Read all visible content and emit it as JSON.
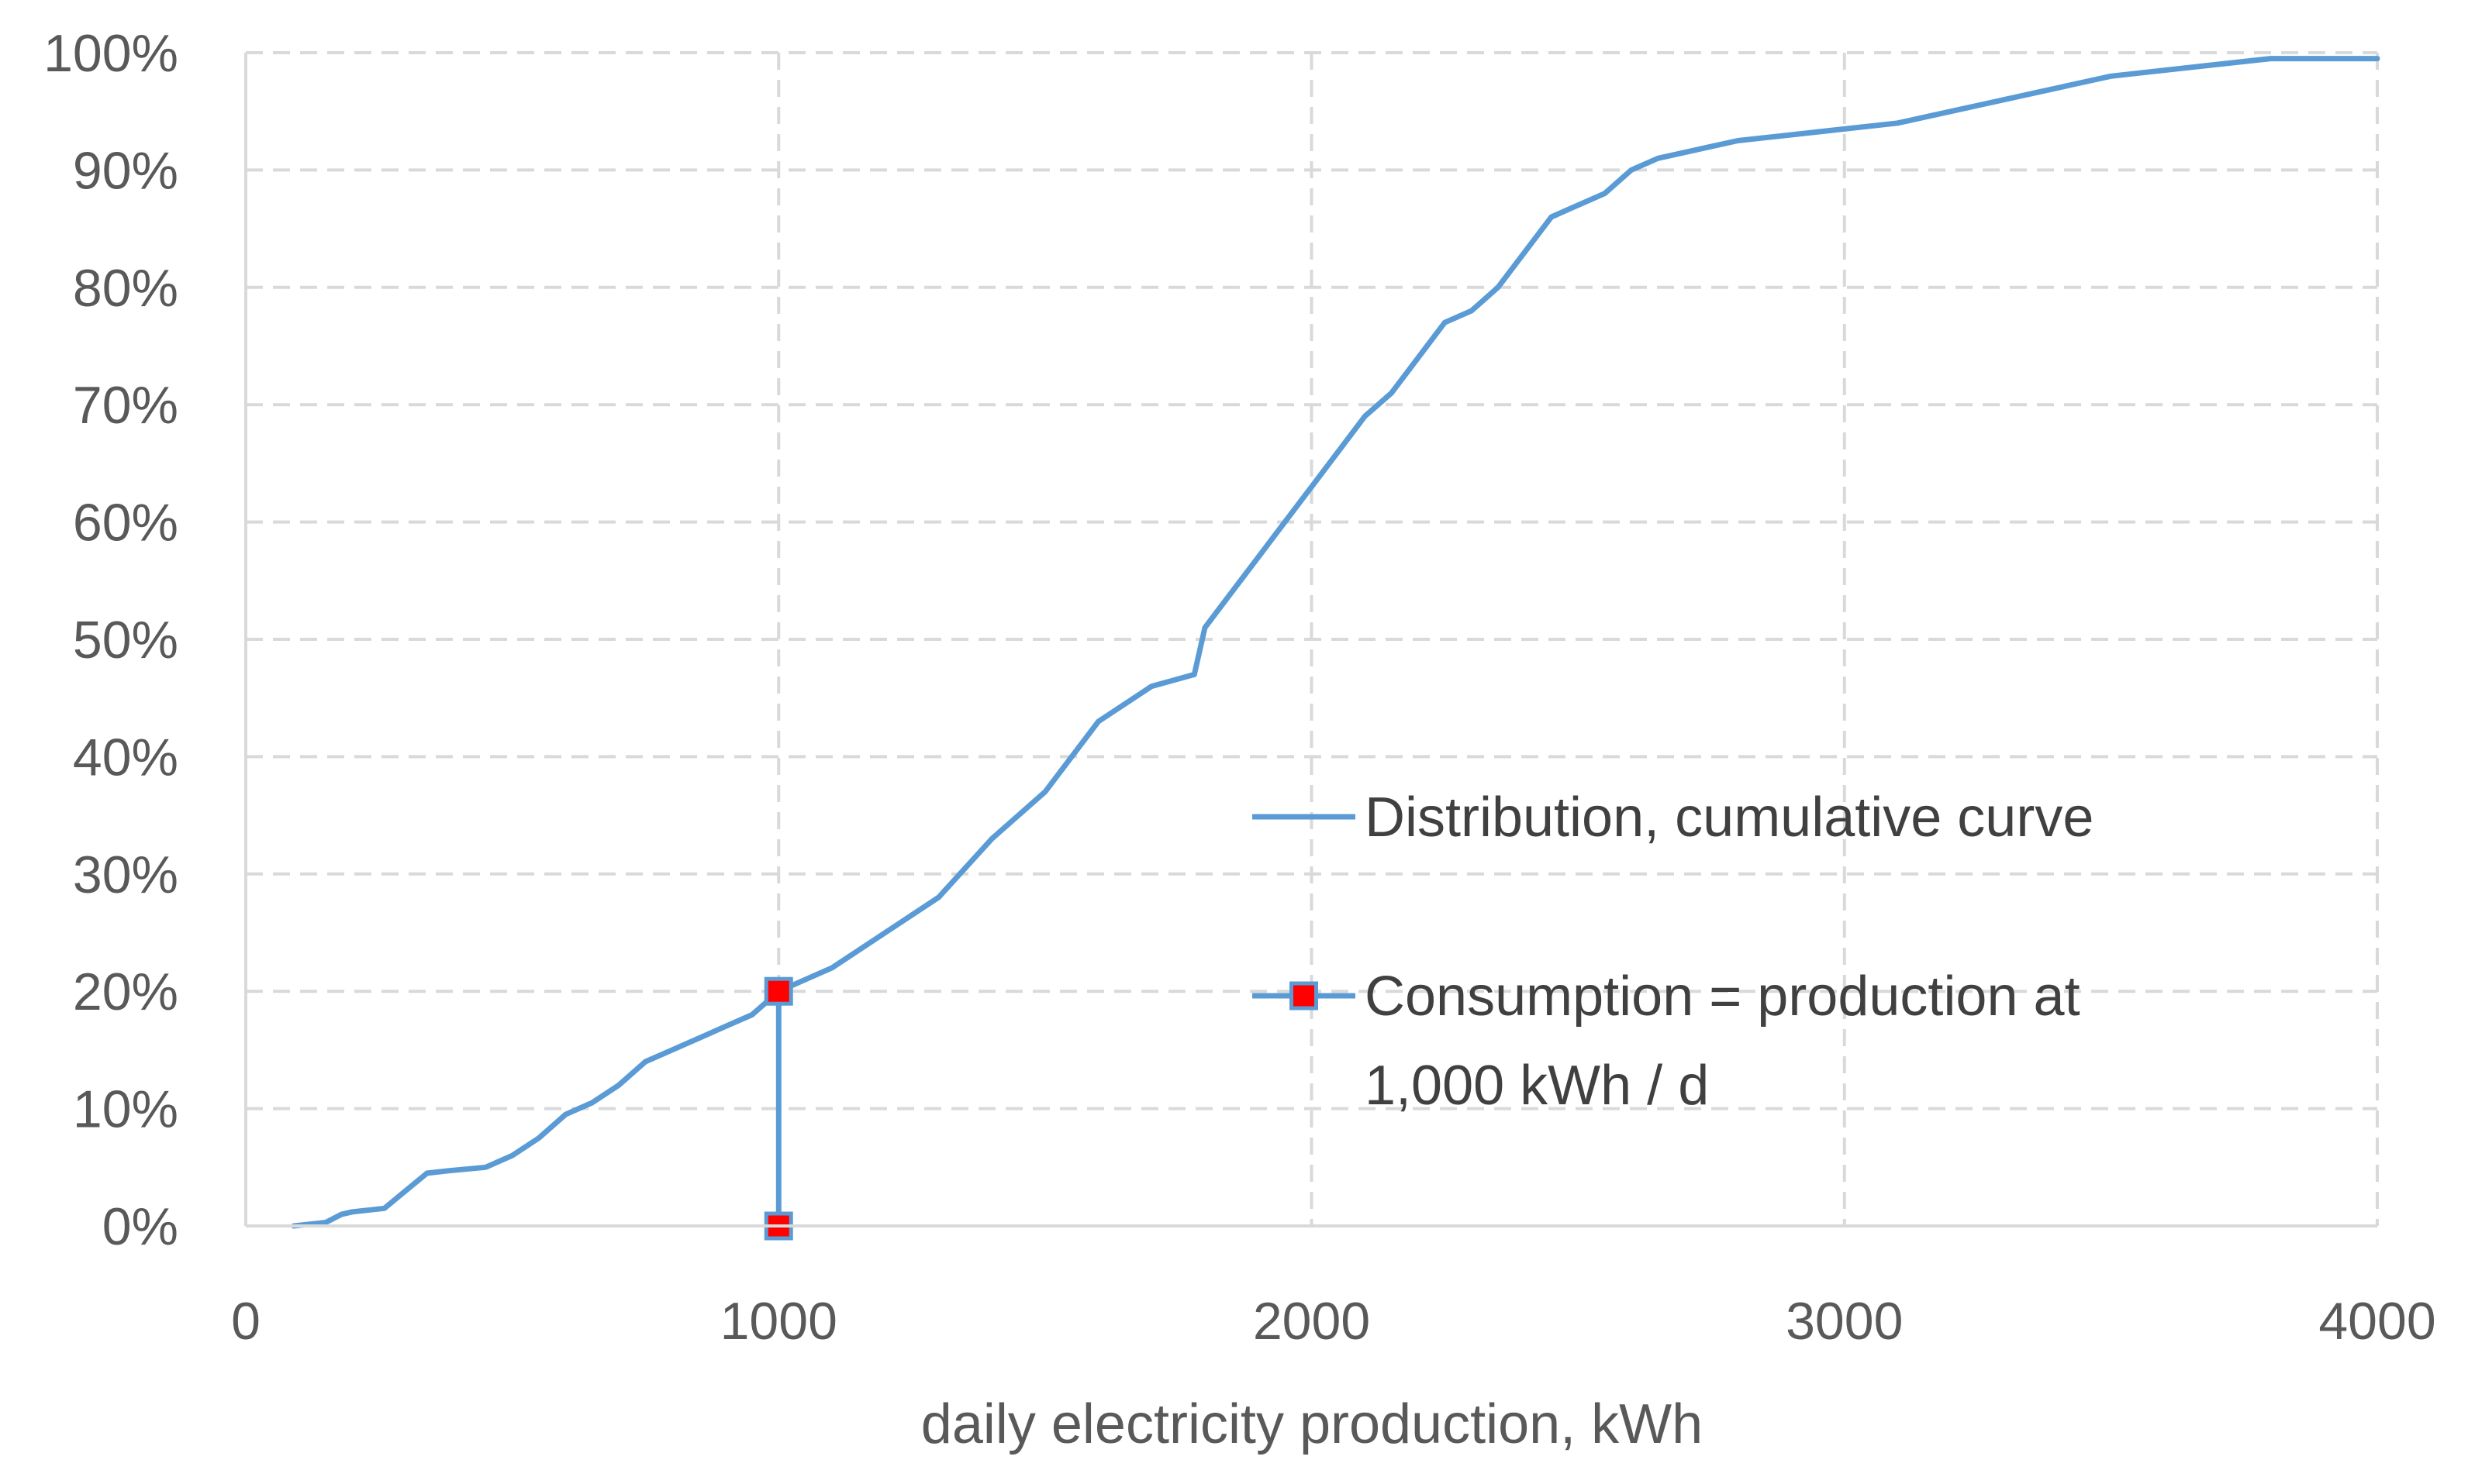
{
  "chart_data": {
    "type": "line",
    "title": "",
    "xlabel": "daily electricity production, kWh",
    "ylabel": "",
    "xlim": [
      0,
      4000
    ],
    "ylim": [
      0,
      1
    ],
    "x_ticks": [
      "0",
      "1000",
      "2000",
      "3000",
      "4000"
    ],
    "x_tick_values": [
      0,
      1000,
      2000,
      3000,
      4000
    ],
    "y_ticks": [
      "0%",
      "10%",
      "20%",
      "30%",
      "40%",
      "50%",
      "60%",
      "70%",
      "80%",
      "90%",
      "100%"
    ],
    "y_tick_values": [
      0,
      0.1,
      0.2,
      0.3,
      0.4,
      0.5,
      0.6,
      0.7,
      0.8,
      0.9,
      1.0
    ],
    "grid": "dashed",
    "legend_position": "center-right",
    "series": [
      {
        "name": "Distribution, cumulative curve",
        "color": "#5B9BD5",
        "marker": "none",
        "x": [
          90,
          150,
          180,
          200,
          260,
          300,
          340,
          380,
          450,
          500,
          550,
          600,
          650,
          700,
          750,
          800,
          850,
          900,
          950,
          1000,
          1100,
          1200,
          1300,
          1400,
          1500,
          1600,
          1700,
          1780,
          1800,
          1850,
          1900,
          1950,
          2000,
          2050,
          2100,
          2150,
          2200,
          2250,
          2300,
          2350,
          2400,
          2450,
          2500,
          2550,
          2600,
          2650,
          2700,
          2750,
          2800,
          2900,
          3000,
          3100,
          3200,
          3300,
          3400,
          3500,
          3600,
          3700,
          3800,
          4000
        ],
        "y": [
          0.0,
          0.003,
          0.01,
          0.012,
          0.015,
          0.03,
          0.045,
          0.047,
          0.05,
          0.06,
          0.075,
          0.095,
          0.105,
          0.12,
          0.14,
          0.15,
          0.16,
          0.17,
          0.18,
          0.2,
          0.22,
          0.25,
          0.28,
          0.33,
          0.37,
          0.43,
          0.46,
          0.47,
          0.51,
          0.54,
          0.57,
          0.6,
          0.63,
          0.66,
          0.69,
          0.71,
          0.74,
          0.77,
          0.78,
          0.8,
          0.83,
          0.86,
          0.87,
          0.88,
          0.9,
          0.91,
          0.915,
          0.92,
          0.925,
          0.93,
          0.935,
          0.94,
          0.95,
          0.96,
          0.97,
          0.98,
          0.985,
          0.99,
          0.995,
          0.995
        ]
      },
      {
        "name": "Consumption = production at 1,000 kWh / d",
        "legend_lines": [
          "Consumption = production at",
          "1,000 kWh / d"
        ],
        "color": "#5B9BD5",
        "marker": "square",
        "marker_color": "#FF0000",
        "x": [
          1000,
          1000
        ],
        "y": [
          0.2,
          0.0
        ]
      }
    ]
  }
}
